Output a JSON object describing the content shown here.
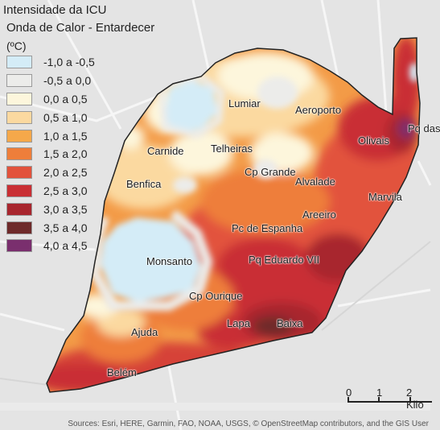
{
  "legend": {
    "title": "Intensidade da ICU",
    "subtitle": "Onda de Calor - Entardecer",
    "unit": "(ºC)",
    "classes": [
      {
        "label": "-1,0 a -0,5",
        "color": "#d4ecf7"
      },
      {
        "label": "-0,5 a 0,0",
        "color": "#ececea"
      },
      {
        "label": "0,0 a 0,5",
        "color": "#fdf6dc"
      },
      {
        "label": "0,5 a 1,0",
        "color": "#fbd9a0"
      },
      {
        "label": "1,0 a 1,5",
        "color": "#f5a84a"
      },
      {
        "label": "1,5 a 2,0",
        "color": "#ee7e3a"
      },
      {
        "label": "2,0 a 2,5",
        "color": "#e2523c"
      },
      {
        "label": "2,5 a 3,0",
        "color": "#c92f34"
      },
      {
        "label": "3,0 a 3,5",
        "color": "#a8262e"
      },
      {
        "label": "3,5 a 4,0",
        "color": "#6e2a2a"
      },
      {
        "label": "4,0 a 4,5",
        "color": "#7a2f6e"
      }
    ]
  },
  "places": [
    "Lumiar",
    "Aeroporto",
    "Pq das",
    "Olivais",
    "Carnide",
    "Telheiras",
    "Cp Grande",
    "Alvalade",
    "Benfica",
    "Marvila",
    "Areeiro",
    "Pc de Espanha",
    "Monsanto",
    "Pq Eduardo VII",
    "Cp Ourique",
    "Lapa",
    "Baixa",
    "Ajuda",
    "Belém"
  ],
  "scale": {
    "ticks": [
      "0",
      "1",
      "2 Kilo"
    ]
  },
  "attribution": "Sources: Esri, HERE, Garmin, FAO, NOAA, USGS, © OpenStreetMap contributors, and the GIS User"
}
